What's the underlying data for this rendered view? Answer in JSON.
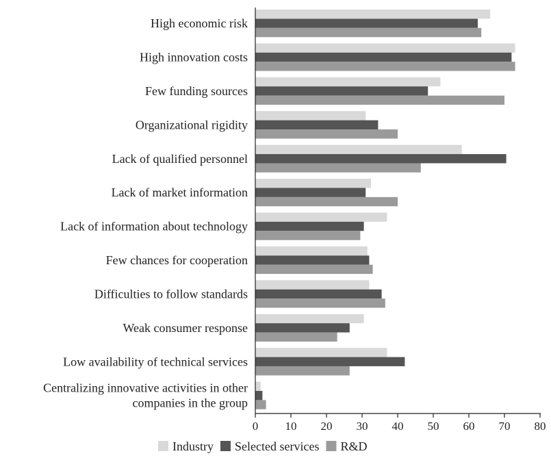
{
  "chart_data": {
    "type": "bar",
    "orientation": "horizontal",
    "categories": [
      [
        "High economic risk"
      ],
      [
        "High innovation costs"
      ],
      [
        "Few funding sources"
      ],
      [
        "Organizational rigidity"
      ],
      [
        "Lack of qualified personnel"
      ],
      [
        "Lack of market information"
      ],
      [
        "Lack of information about technology"
      ],
      [
        "Few chances for cooperation"
      ],
      [
        "Difficulties to follow standards"
      ],
      [
        "Weak consumer response"
      ],
      [
        "Low availability of technical services"
      ],
      [
        "Centralizing innovative activities in other",
        "companies in the group"
      ]
    ],
    "series": [
      {
        "name": "Industry",
        "color": "#d9d9d9",
        "values": [
          66,
          73,
          52,
          31,
          58,
          32.5,
          37,
          31.5,
          32,
          30.5,
          37,
          1.5
        ]
      },
      {
        "name": "Selected services",
        "color": "#555555",
        "values": [
          62.5,
          72,
          48.5,
          34.5,
          70.5,
          31,
          30.5,
          32,
          35.5,
          26.5,
          42,
          2
        ]
      },
      {
        "name": "R&D",
        "color": "#9a9a9a",
        "values": [
          63.5,
          73,
          70,
          40,
          46.5,
          40,
          29.5,
          33,
          36.5,
          23,
          26.5,
          3
        ]
      }
    ],
    "xlim": [
      0,
      80
    ],
    "xticks": [
      0,
      10,
      20,
      30,
      40,
      50,
      60,
      70,
      80
    ],
    "legend_position": "bottom",
    "grid": false
  }
}
